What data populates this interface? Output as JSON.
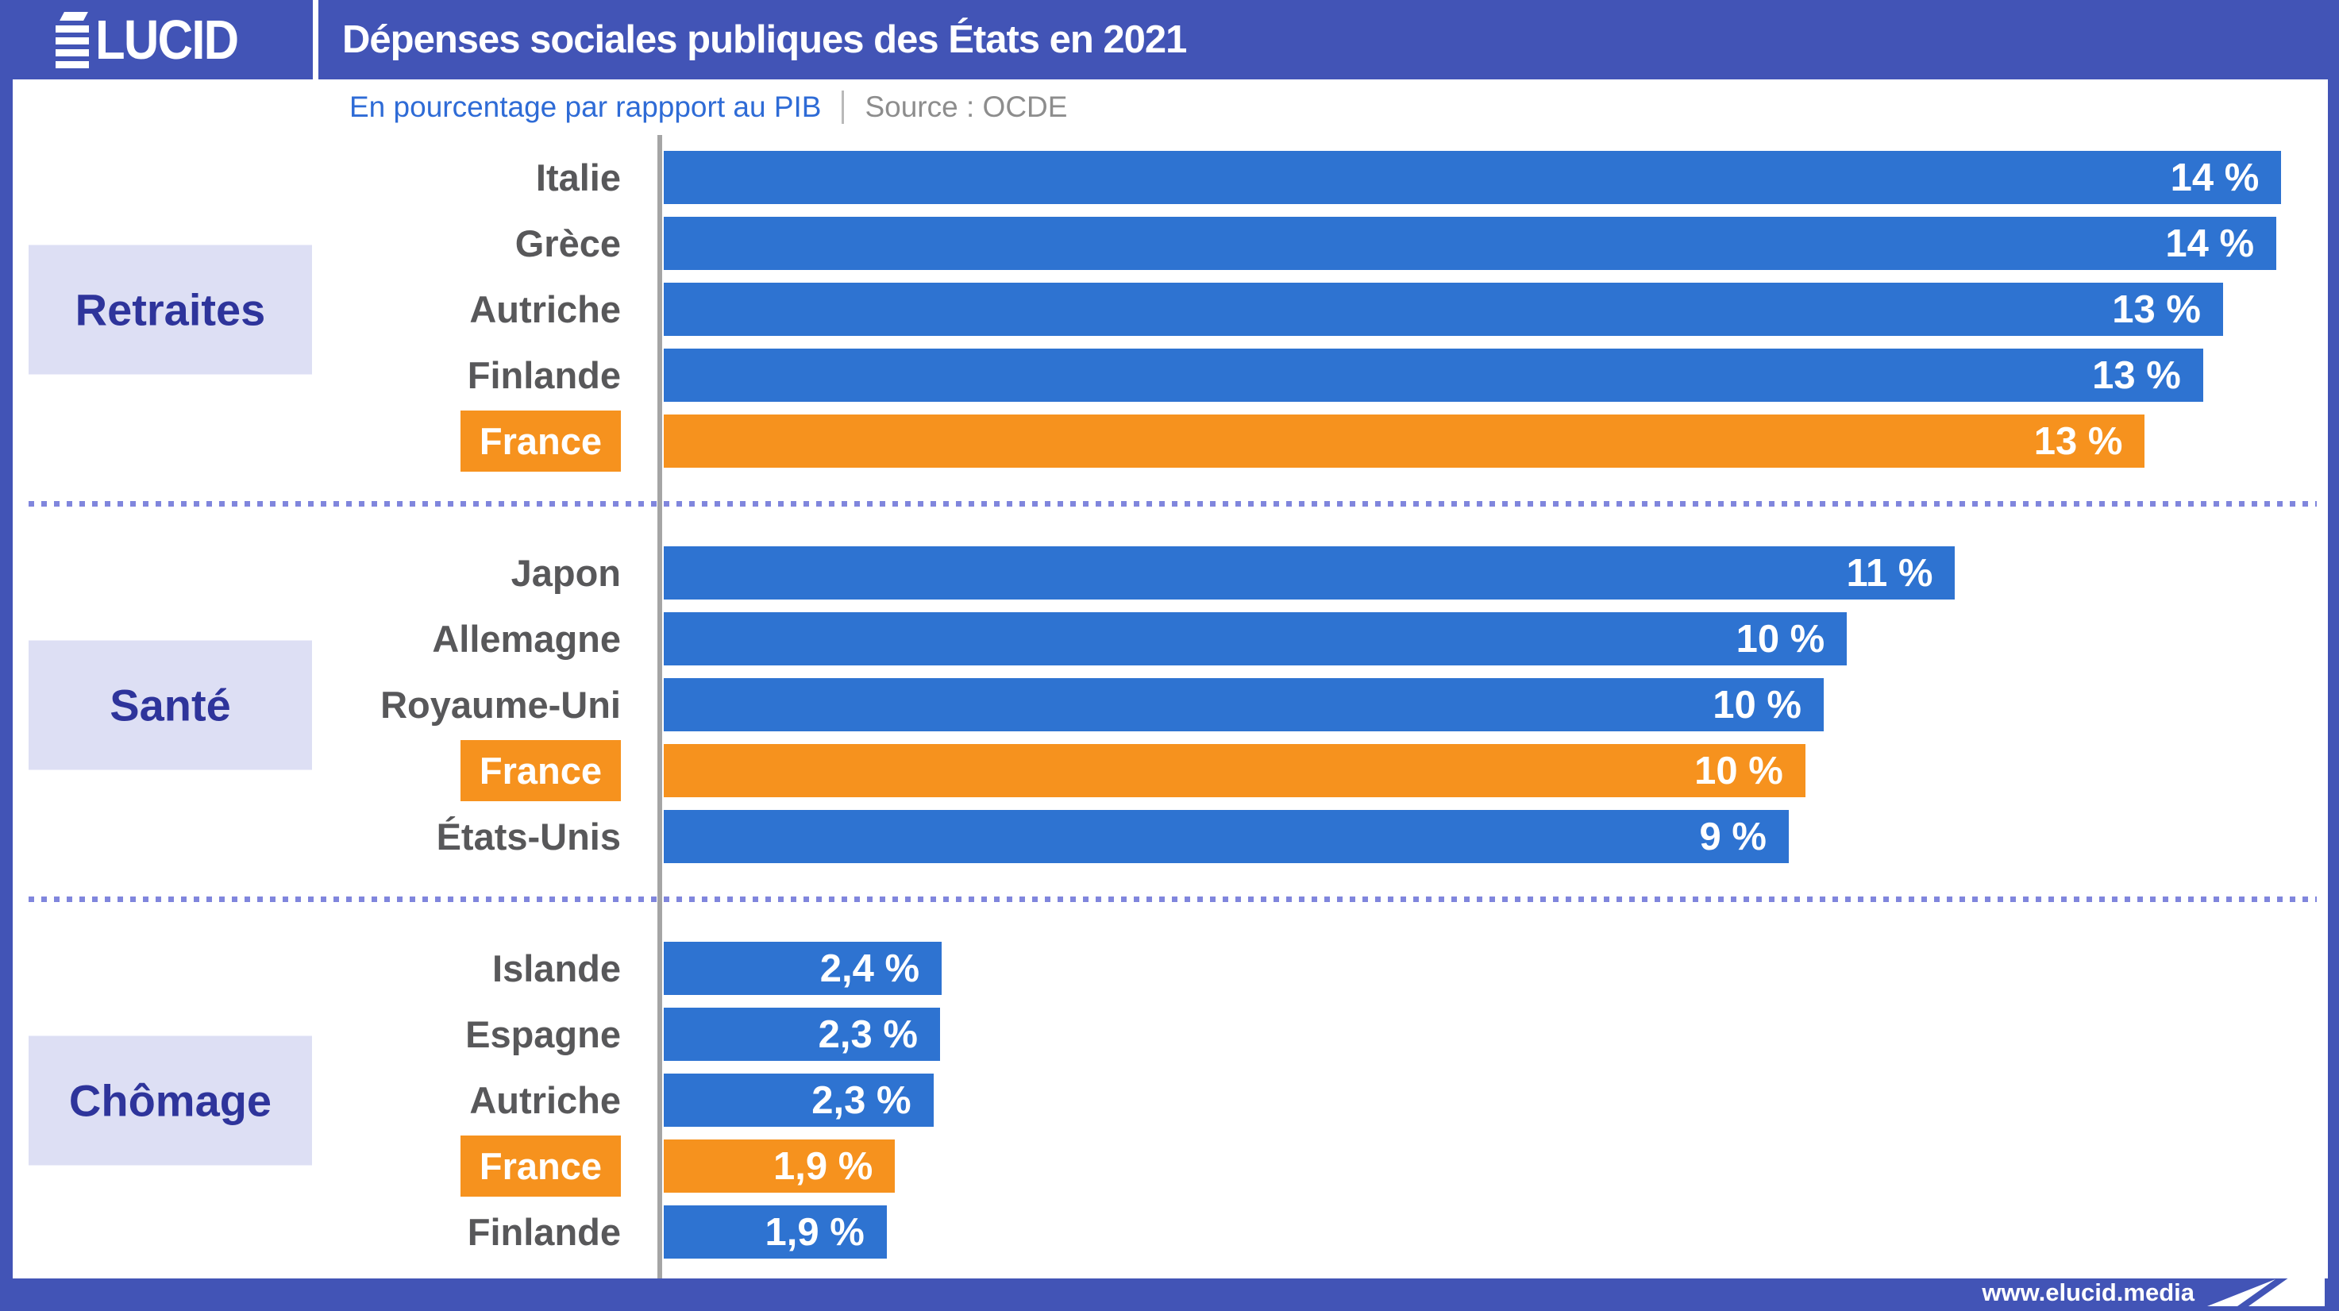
{
  "brand": {
    "name": "ÉLUCID",
    "wordmark_suffix": "LUCID"
  },
  "header": {
    "title": "Dépenses sociales publiques des États en 2021"
  },
  "subtitle": {
    "text": "En pourcentage par rappport au PIB",
    "separator": "|",
    "source": "Source : OCDE"
  },
  "footer": {
    "url": "www.elucid.media"
  },
  "colors": {
    "frame_blue": "#4254b6",
    "bar_blue": "#2e73d1",
    "highlight_orange": "#f6921e",
    "section_box_bg": "#dddff4",
    "section_text": "#2e349b",
    "country_label": "#58585a",
    "subtitle_blue": "#2e6bd6",
    "source_gray": "#8d8d8d",
    "axis_gray": "#a5a5a5",
    "dotted_separator": "#8086dd"
  },
  "chart_data": {
    "type": "bar",
    "orientation": "horizontal",
    "title": "Dépenses sociales publiques des États en 2021",
    "unit": "% du PIB",
    "xlabel": "",
    "ylabel": "",
    "xlim": [
      0,
      14.4
    ],
    "grid": false,
    "legend": "none",
    "highlight_country": "France",
    "sections": [
      {
        "id": "retraites",
        "label": "Retraites",
        "rows": [
          {
            "country": "Italie",
            "value": 14,
            "value_label": "14 %",
            "bar_pct": 97.2,
            "highlight": false
          },
          {
            "country": "Grèce",
            "value": 14,
            "value_label": "14 %",
            "bar_pct": 96.9,
            "highlight": false
          },
          {
            "country": "Autriche",
            "value": 13,
            "value_label": "13 %",
            "bar_pct": 93.7,
            "highlight": false
          },
          {
            "country": "Finlande",
            "value": 13,
            "value_label": "13 %",
            "bar_pct": 92.5,
            "highlight": false
          },
          {
            "country": "France",
            "value": 13,
            "value_label": "13 %",
            "bar_pct": 89.0,
            "highlight": true
          }
        ]
      },
      {
        "id": "sante",
        "label": "Santé",
        "rows": [
          {
            "country": "Japon",
            "value": 11,
            "value_label": "11 %",
            "bar_pct": 77.6,
            "highlight": false
          },
          {
            "country": "Allemagne",
            "value": 10,
            "value_label": "10 %",
            "bar_pct": 71.1,
            "highlight": false
          },
          {
            "country": "Royaume-Uni",
            "value": 10,
            "value_label": "10 %",
            "bar_pct": 69.7,
            "highlight": false
          },
          {
            "country": "France",
            "value": 10,
            "value_label": "10 %",
            "bar_pct": 68.6,
            "highlight": true
          },
          {
            "country": "États-Unis",
            "value": 9,
            "value_label": "9 %",
            "bar_pct": 67.6,
            "highlight": false
          }
        ]
      },
      {
        "id": "chomage",
        "label": "Chômage",
        "rows": [
          {
            "country": "Islande",
            "value": 2.4,
            "value_label": "2,4 %",
            "bar_pct": 16.7,
            "highlight": false
          },
          {
            "country": "Espagne",
            "value": 2.3,
            "value_label": "2,3 %",
            "bar_pct": 16.6,
            "highlight": false
          },
          {
            "country": "Autriche",
            "value": 2.3,
            "value_label": "2,3 %",
            "bar_pct": 16.2,
            "highlight": false
          },
          {
            "country": "France",
            "value": 1.9,
            "value_label": "1,9 %",
            "bar_pct": 13.9,
            "highlight": true
          },
          {
            "country": "Finlande",
            "value": 1.9,
            "value_label": "1,9 %",
            "bar_pct": 13.4,
            "highlight": false
          }
        ]
      }
    ]
  }
}
